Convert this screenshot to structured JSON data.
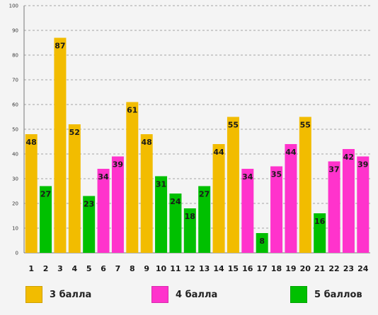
{
  "chart_data": {
    "type": "bar",
    "title": "",
    "xlabel": "",
    "ylabel": "",
    "ylim": [
      0,
      100
    ],
    "yticks": [
      0,
      10,
      20,
      30,
      40,
      50,
      60,
      70,
      80,
      90,
      100
    ],
    "grid": true,
    "legend_position": "bottom",
    "categories": [
      "1",
      "2",
      "3",
      "4",
      "5",
      "6",
      "7",
      "8",
      "9",
      "10",
      "11",
      "12",
      "13",
      "14",
      "15",
      "16",
      "17",
      "18",
      "19",
      "20",
      "21",
      "22",
      "23",
      "24"
    ],
    "values": [
      48,
      27,
      87,
      52,
      23,
      34,
      39,
      61,
      48,
      31,
      24,
      18,
      27,
      44,
      55,
      34,
      8,
      35,
      44,
      55,
      16,
      37,
      42,
      39
    ],
    "groups": [
      0,
      2,
      0,
      0,
      2,
      1,
      1,
      0,
      0,
      2,
      2,
      2,
      2,
      0,
      0,
      1,
      2,
      1,
      1,
      0,
      2,
      1,
      1,
      1
    ],
    "series": [
      {
        "name": "3 балла",
        "color": "#f2bc00"
      },
      {
        "name": "4 балла",
        "color": "#ff33cc"
      },
      {
        "name": "5 баллов",
        "color": "#00c000"
      }
    ]
  }
}
